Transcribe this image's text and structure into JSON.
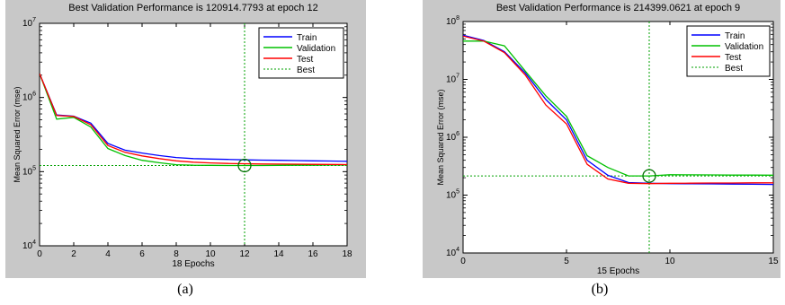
{
  "chart_data": [
    {
      "type": "line",
      "title": "Best Validation Performance is 120914.7793 at epoch 12",
      "xlabel": "18 Epochs",
      "ylabel": "Mean Squared Error  (mse)",
      "yscale": "log",
      "xlim": [
        0,
        18
      ],
      "ylim": [
        10000,
        10000000
      ],
      "x_ticks": [
        "0",
        "2",
        "4",
        "6",
        "8",
        "10",
        "12",
        "14",
        "16",
        "18"
      ],
      "y_ticks": [
        {
          "base": "10",
          "exp": "4"
        },
        {
          "base": "10",
          "exp": "5"
        },
        {
          "base": "10",
          "exp": "6"
        },
        {
          "base": "10",
          "exp": "7"
        }
      ],
      "legend_position": "top-right",
      "best": {
        "x": 12,
        "y": 120914.7793
      },
      "series": [
        {
          "name": "Train",
          "color": "#0000ff",
          "style": "solid",
          "x": [
            0,
            1,
            2,
            3,
            4,
            5,
            6,
            7,
            8,
            9,
            10,
            11,
            12,
            13,
            14,
            15,
            16,
            17,
            18
          ],
          "y": [
            2100000,
            580000,
            560000,
            450000,
            240000,
            195000,
            178000,
            165000,
            155000,
            150000,
            148000,
            146000,
            144000,
            143000,
            142000,
            141000,
            140000,
            139000,
            138000
          ]
        },
        {
          "name": "Validation",
          "color": "#00c000",
          "style": "solid",
          "x": [
            0,
            1,
            2,
            3,
            4,
            5,
            6,
            7,
            8,
            9,
            10,
            11,
            12,
            13,
            14,
            15,
            16,
            17,
            18
          ],
          "y": [
            2100000,
            510000,
            540000,
            400000,
            205000,
            165000,
            142000,
            132000,
            124000,
            122000,
            121500,
            121000,
            120914.7793,
            121000,
            121500,
            122000,
            122000,
            122500,
            123000
          ]
        },
        {
          "name": "Test",
          "color": "#ff0000",
          "style": "solid",
          "x": [
            0,
            1,
            2,
            3,
            4,
            5,
            6,
            7,
            8,
            9,
            10,
            11,
            12,
            13,
            14,
            15,
            16,
            17,
            18
          ],
          "y": [
            2100000,
            570000,
            555000,
            430000,
            225000,
            182000,
            163000,
            150000,
            140000,
            134000,
            131000,
            129000,
            128000,
            127000,
            126500,
            126000,
            125500,
            125000,
            124500
          ]
        },
        {
          "name": "Best",
          "color": "#00a000",
          "style": "dotted"
        }
      ]
    },
    {
      "type": "line",
      "title": "Best Validation Performance is 214399.0621 at epoch 9",
      "xlabel": "15 Epochs",
      "ylabel": "Mean Squared Error  (mse)",
      "yscale": "log",
      "xlim": [
        0,
        15
      ],
      "ylim": [
        10000,
        100000000
      ],
      "x_ticks": [
        "0",
        "5",
        "10",
        "15"
      ],
      "y_ticks": [
        {
          "base": "10",
          "exp": "4"
        },
        {
          "base": "10",
          "exp": "5"
        },
        {
          "base": "10",
          "exp": "6"
        },
        {
          "base": "10",
          "exp": "7"
        },
        {
          "base": "10",
          "exp": "8"
        }
      ],
      "legend_position": "top-right",
      "best": {
        "x": 9,
        "y": 214399.0621
      },
      "series": [
        {
          "name": "Train",
          "color": "#0000ff",
          "style": "solid",
          "x": [
            0,
            1,
            2,
            3,
            4,
            5,
            6,
            7,
            8,
            9,
            10,
            11,
            12,
            13,
            14,
            15
          ],
          "y": [
            58000000,
            47000000,
            30000000,
            13000000,
            4500000,
            2000000,
            400000,
            220000,
            165000,
            160000,
            158000,
            157000,
            156000,
            155000,
            154000,
            153000
          ]
        },
        {
          "name": "Validation",
          "color": "#00c000",
          "style": "solid",
          "x": [
            0,
            1,
            2,
            3,
            4,
            5,
            6,
            7,
            8,
            9,
            10,
            11,
            12,
            13,
            14,
            15
          ],
          "y": [
            46000000,
            46000000,
            38000000,
            14000000,
            5200000,
            2300000,
            480000,
            300000,
            215000,
            214399.0621,
            225000,
            224000,
            223000,
            222000,
            222000,
            221000
          ]
        },
        {
          "name": "Test",
          "color": "#ff0000",
          "style": "solid",
          "x": [
            0,
            1,
            2,
            3,
            4,
            5,
            6,
            7,
            8,
            9,
            10,
            11,
            12,
            13,
            14,
            15
          ],
          "y": [
            56000000,
            46000000,
            29000000,
            12000000,
            3600000,
            1700000,
            340000,
            190000,
            160000,
            158000,
            160000,
            161000,
            162000,
            162000,
            163000,
            163000
          ]
        },
        {
          "name": "Best",
          "color": "#00a000",
          "style": "dotted"
        }
      ]
    }
  ],
  "captions": {
    "a": "(a)",
    "b": "(b)"
  }
}
